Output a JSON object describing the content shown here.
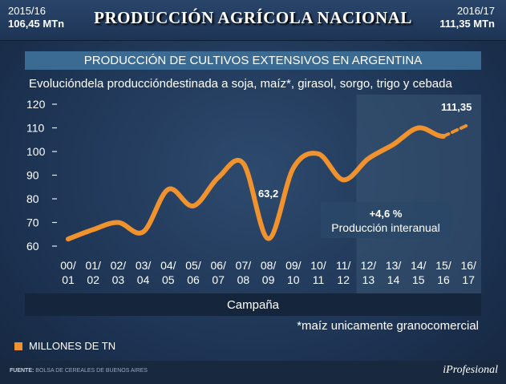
{
  "header": {
    "left": {
      "season": "2015/16",
      "value": "106,45 MTn"
    },
    "right": {
      "season": "2016/17",
      "value": "111,35 MTn"
    },
    "title": "PRODUCCIÓN AGRÍCOLA NACIONAL"
  },
  "colors": {
    "line": "#f0922e",
    "highlight": "#3a5675"
  },
  "chart_data": {
    "type": "line",
    "title": "PRODUCCIÓN DE CULTIVOS EXTENSIVOS EN ARGENTINA",
    "subtitle": "Evolucióndela produccióndestinada a soja, maíz*, girasol, sorgo, trigo y cebada",
    "xlabel": "Campaña",
    "ylabel": "",
    "ylim": [
      60,
      120
    ],
    "yticks": [
      120,
      110,
      100,
      90,
      80,
      70,
      60
    ],
    "categories": [
      "00/ 01",
      "01/ 02",
      "02/ 03",
      "03/ 04",
      "04/ 05",
      "05/ 06",
      "06/ 07",
      "07/ 08",
      "08/ 09",
      "09/ 10",
      "10/ 11",
      "11/ 12",
      "12/ 13",
      "13/ 14",
      "14/ 15",
      "15/ 16",
      "16/ 17"
    ],
    "category_lines": [
      [
        "00/",
        "01"
      ],
      [
        "01/",
        "02"
      ],
      [
        "02/",
        "03"
      ],
      [
        "03/",
        "04"
      ],
      [
        "04/",
        "05"
      ],
      [
        "05/",
        "06"
      ],
      [
        "06/",
        "07"
      ],
      [
        "07/",
        "08"
      ],
      [
        "08/",
        "09"
      ],
      [
        "09/",
        "10"
      ],
      [
        "10/",
        "11"
      ],
      [
        "11/",
        "12"
      ],
      [
        "12/",
        "13"
      ],
      [
        "13/",
        "14"
      ],
      [
        "14/",
        "15"
      ],
      [
        "15/",
        "16"
      ],
      [
        "16/",
        "17"
      ]
    ],
    "series": [
      {
        "name": "MILLONES DE TN",
        "values": [
          63,
          67,
          70,
          66,
          84,
          77,
          89,
          95,
          63.2,
          93,
          99,
          88,
          97,
          103,
          110,
          106.45,
          111.35
        ]
      }
    ],
    "projected_from_index": 15,
    "labels": {
      "min": "63,2",
      "last": "111,35"
    },
    "highlight_start_index": 12,
    "annotation": {
      "value": "+4,6 %",
      "text": "Producción interanual"
    },
    "footnote": "*maíz unicamente granocomercial",
    "legend": "MILLONES DE TN"
  },
  "footer": {
    "source_label": "FUENTE:",
    "source": "BOLSA DE CEREALES DE BUENOS AIRES",
    "logo": "iProfesional"
  }
}
